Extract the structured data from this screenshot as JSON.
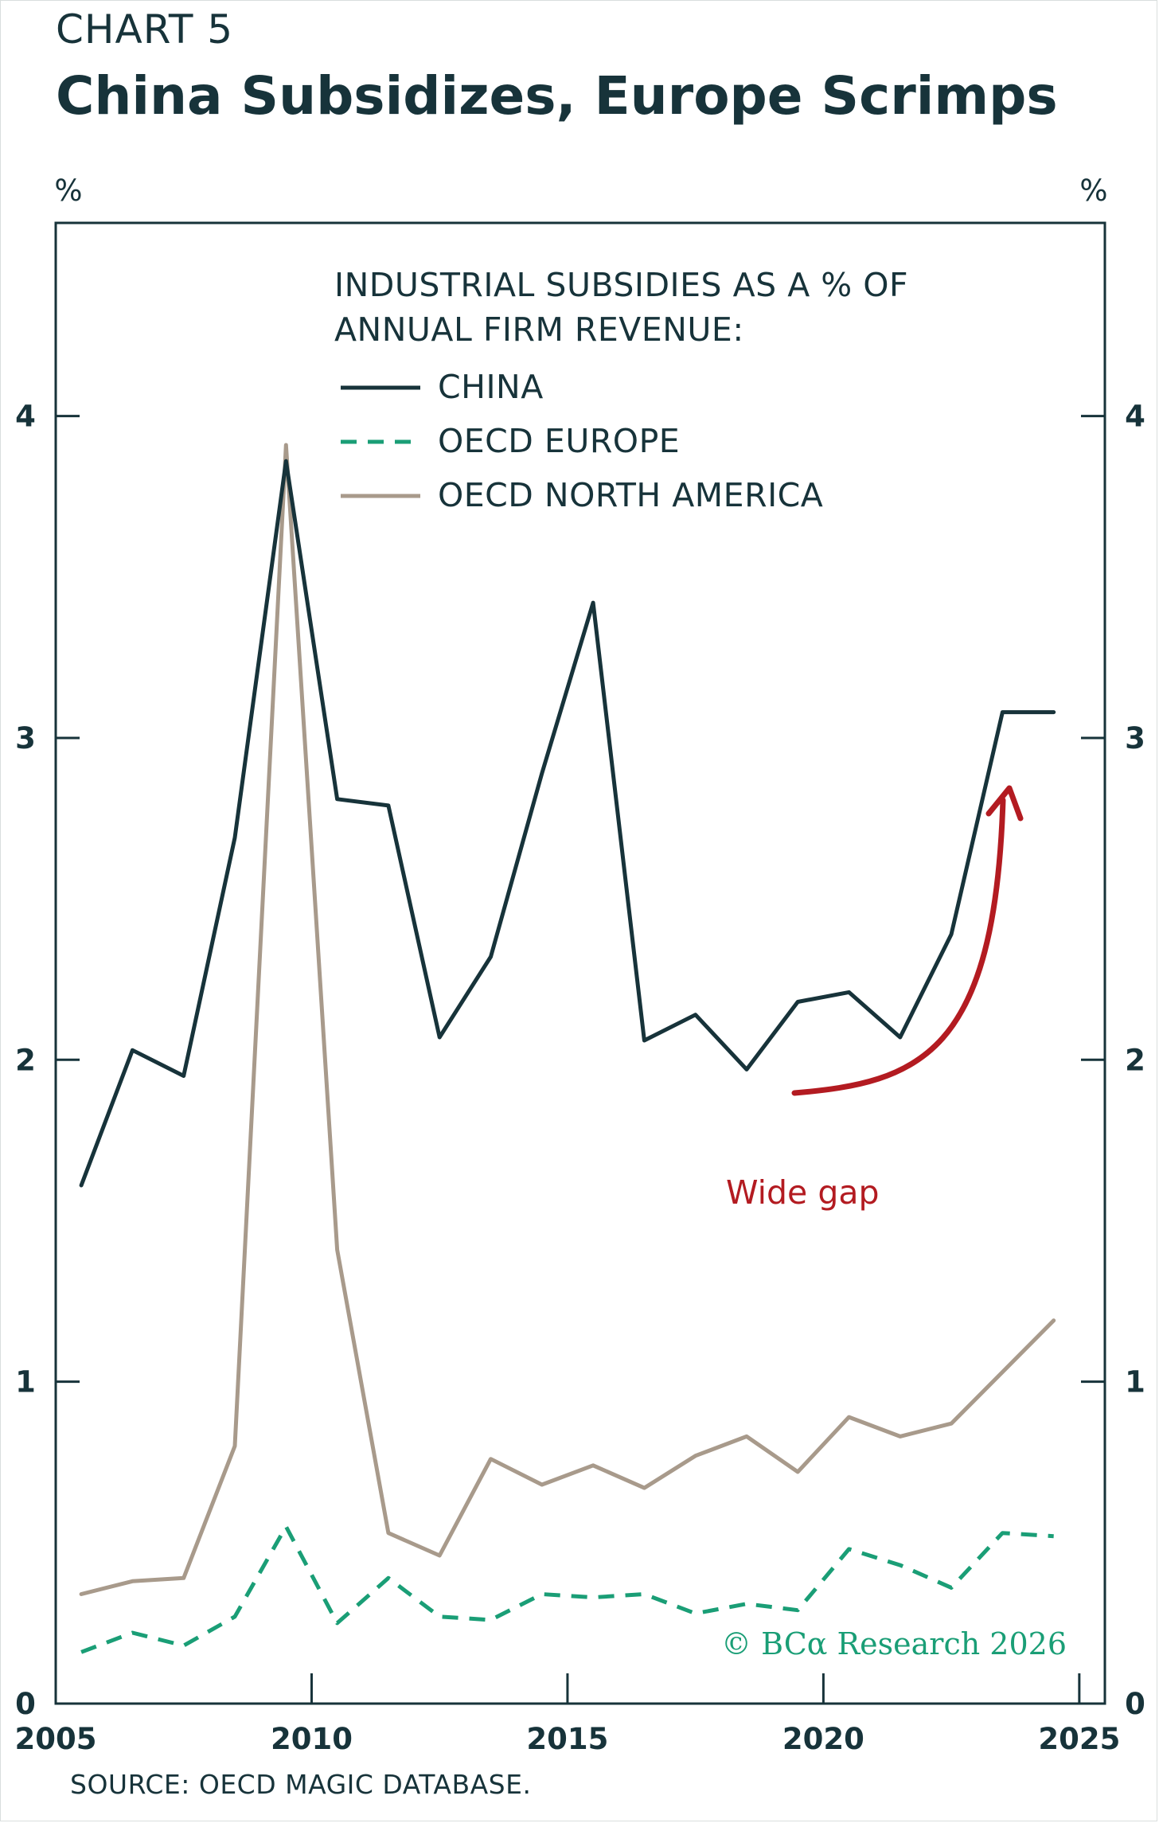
{
  "header": {
    "kicker": "CHART 5",
    "title": "China Subsidizes, Europe Scrimps"
  },
  "footer": {
    "source": "SOURCE: OECD MAGIC DATABASE.",
    "copyright": "© BCα Research 2026"
  },
  "chart_data": {
    "type": "line",
    "title": "China Subsidizes, Europe Scrimps",
    "ylabel_left": "%",
    "ylabel_right": "%",
    "legend_title": [
      "INDUSTRIAL SUBSIDIES AS A % OF",
      "ANNUAL FIRM REVENUE:"
    ],
    "legend_placement": "top-center",
    "grid": false,
    "xlim": [
      2005,
      2025.5
    ],
    "ylim": [
      0,
      4.6
    ],
    "x_ticks": [
      2005,
      2010,
      2015,
      2020,
      2025
    ],
    "y_ticks": [
      0,
      1,
      2,
      3,
      4
    ],
    "x": [
      2005.5,
      2006.5,
      2007.5,
      2008.5,
      2009.5,
      2010.5,
      2011.5,
      2012.5,
      2013.5,
      2014.5,
      2015.5,
      2016.5,
      2017.5,
      2018.5,
      2019.5,
      2020.5,
      2021.5,
      2022.5,
      2023.5,
      2024.5
    ],
    "series": [
      {
        "name": "CHINA",
        "style": "solid",
        "color": "#17333a",
        "values": [
          1.61,
          2.03,
          1.95,
          2.69,
          3.86,
          2.81,
          2.79,
          2.07,
          2.32,
          2.89,
          3.42,
          2.06,
          2.14,
          1.97,
          2.18,
          2.21,
          2.07,
          2.39,
          3.08,
          3.08
        ]
      },
      {
        "name": "OECD EUROPE",
        "style": "dashed",
        "color": "#1a9e76",
        "values": [
          0.16,
          0.22,
          0.18,
          0.27,
          0.55,
          0.25,
          0.39,
          0.27,
          0.26,
          0.34,
          0.33,
          0.34,
          0.28,
          0.31,
          0.29,
          0.48,
          0.43,
          0.36,
          0.53,
          0.52
        ]
      },
      {
        "name": "OECD NORTH AMERICA",
        "style": "solid",
        "color": "#a89a8b",
        "values": [
          0.34,
          0.38,
          0.39,
          0.8,
          3.91,
          1.41,
          0.53,
          0.46,
          0.76,
          0.68,
          0.74,
          0.67,
          0.77,
          0.83,
          0.72,
          0.89,
          0.83,
          0.87,
          1.03,
          1.19
        ]
      }
    ],
    "annotations": [
      {
        "text": "Wide gap",
        "color": "#b31b21",
        "x": 2019.8,
        "y": 1.55
      }
    ]
  }
}
